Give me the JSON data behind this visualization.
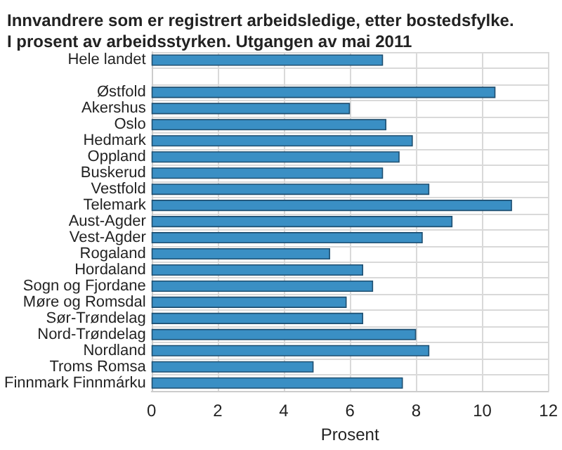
{
  "chart_data": {
    "type": "bar",
    "orientation": "horizontal",
    "title": "Innvandrere som er registrert arbeidsledige, etter bostedsfylke.\nI prosent av arbeidsstyrken. Utgangen av mai 2011",
    "xlabel": "Prosent",
    "categories": [
      "Hele landet",
      null,
      "Østfold",
      "Akershus",
      "Oslo",
      "Hedmark",
      "Oppland",
      "Buskerud",
      "Vestfold",
      "Telemark",
      "Aust-Agder",
      "Vest-Agder",
      "Rogaland",
      "Hordaland",
      "Sogn og Fjordane",
      "Møre og Romsdal",
      "Sør-Trøndelag",
      "Nord-Trøndelag",
      "Nordland",
      "Troms Romsa",
      "Finnmark Finnmárku"
    ],
    "values": [
      7.0,
      null,
      10.4,
      6.0,
      7.1,
      7.9,
      7.5,
      7.0,
      8.4,
      10.9,
      9.1,
      8.2,
      5.4,
      6.4,
      6.7,
      5.9,
      6.4,
      8.0,
      8.4,
      4.9,
      7.6
    ],
    "color": "#3a8fc4",
    "xlim": [
      0,
      12
    ],
    "xticks": [
      0,
      2,
      4,
      6,
      8,
      10,
      12
    ],
    "grid": true
  }
}
